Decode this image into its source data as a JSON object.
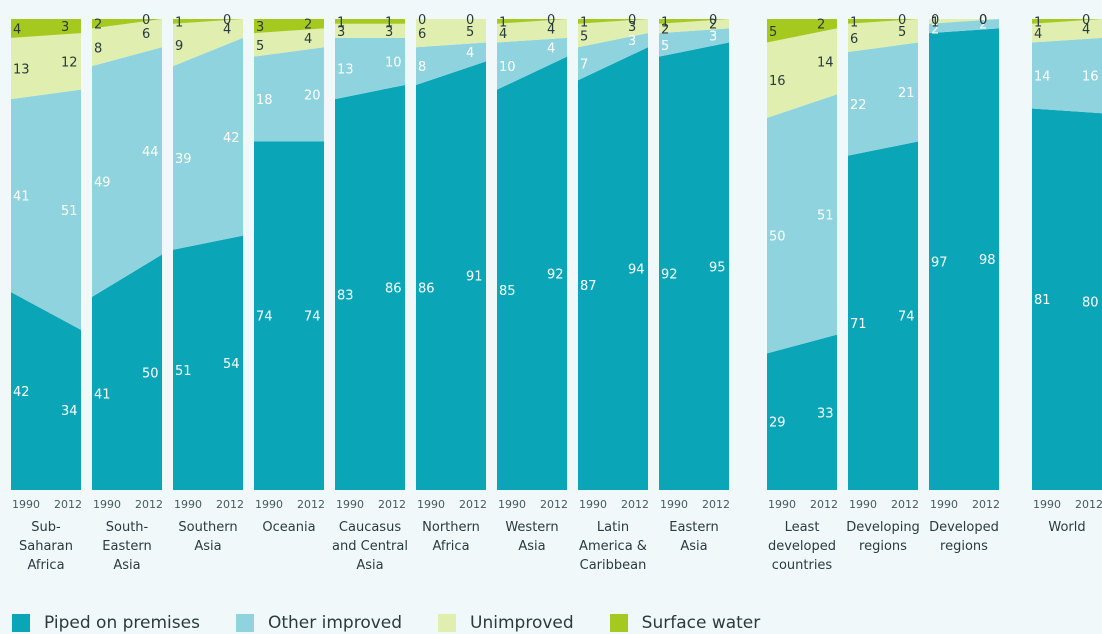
{
  "chart_data": {
    "type": "area",
    "ylim": [
      0,
      100
    ],
    "series": [
      {
        "name": "Piped on premises",
        "color": "#0aa6b8"
      },
      {
        "name": "Other improved",
        "color": "#8fd3de"
      },
      {
        "name": "Unimproved",
        "color": "#e0eeb0"
      },
      {
        "name": "Surface water",
        "color": "#a6c920"
      }
    ],
    "label_colors": {
      "piped": "#ffffff",
      "other": "#ffffff",
      "unimproved": "#2a3b3f",
      "surface": "#2a3b3f"
    },
    "regions": [
      {
        "name": "Sub-Saharan Africa",
        "label_lines": [
          "Sub-",
          "Saharan",
          "Africa"
        ],
        "years": [
          "1990",
          "2012"
        ],
        "values": [
          [
            42,
            41,
            13,
            4
          ],
          [
            34,
            51,
            12,
            3
          ]
        ]
      },
      {
        "name": "South-Eastern Asia",
        "label_lines": [
          "South-",
          "Eastern",
          "Asia"
        ],
        "years": [
          "1990",
          "2012"
        ],
        "values": [
          [
            41,
            49,
            8,
            2
          ],
          [
            50,
            44,
            6,
            0
          ]
        ]
      },
      {
        "name": "Southern Asia",
        "label_lines": [
          "Southern",
          "Asia"
        ],
        "years": [
          "1990",
          "2012"
        ],
        "values": [
          [
            51,
            39,
            9,
            1
          ],
          [
            54,
            42,
            4,
            0
          ]
        ]
      },
      {
        "name": "Oceania",
        "label_lines": [
          "Oceania"
        ],
        "years": [
          "1990",
          "2012"
        ],
        "values": [
          [
            74,
            18,
            5,
            3
          ],
          [
            74,
            20,
            4,
            2
          ]
        ]
      },
      {
        "name": "Caucasus and Central Asia",
        "label_lines": [
          "Caucasus",
          "and Central",
          "Asia"
        ],
        "years": [
          "1990",
          "2012"
        ],
        "values": [
          [
            83,
            13,
            3,
            1
          ],
          [
            86,
            10,
            3,
            1
          ]
        ]
      },
      {
        "name": "Northern Africa",
        "label_lines": [
          "Northern",
          "Africa"
        ],
        "years": [
          "1990",
          "2012"
        ],
        "values": [
          [
            86,
            8,
            6,
            0
          ],
          [
            91,
            4,
            5,
            0
          ]
        ]
      },
      {
        "name": "Western Asia",
        "label_lines": [
          "Western",
          "Asia"
        ],
        "years": [
          "1990",
          "2012"
        ],
        "values": [
          [
            85,
            10,
            4,
            1
          ],
          [
            92,
            4,
            4,
            0
          ]
        ]
      },
      {
        "name": "Latin America & Caribbean",
        "label_lines": [
          "Latin",
          "America &",
          "Caribbean"
        ],
        "years": [
          "1990",
          "2012"
        ],
        "values": [
          [
            87,
            7,
            5,
            1
          ],
          [
            94,
            3,
            3,
            0
          ]
        ]
      },
      {
        "name": "Eastern Asia",
        "label_lines": [
          "Eastern",
          "Asia"
        ],
        "years": [
          "1990",
          "2012"
        ],
        "values": [
          [
            92,
            5,
            2,
            1
          ],
          [
            95,
            3,
            2,
            0
          ]
        ]
      },
      {
        "name": "Least developed countries",
        "label_lines": [
          "Least",
          "developed",
          "countries"
        ],
        "years": [
          "1990",
          "2012"
        ],
        "values": [
          [
            29,
            50,
            16,
            5
          ],
          [
            33,
            51,
            14,
            2
          ]
        ]
      },
      {
        "name": "Developing regions",
        "label_lines": [
          "Developing",
          "regions"
        ],
        "years": [
          "1990",
          "2012"
        ],
        "values": [
          [
            71,
            22,
            6,
            1
          ],
          [
            74,
            21,
            5,
            0
          ]
        ]
      },
      {
        "name": "Developed regions",
        "label_lines": [
          "Developed",
          "regions"
        ],
        "years": [
          "1990",
          "2012"
        ],
        "values": [
          [
            97,
            2,
            1,
            0
          ],
          [
            98,
            2,
            0,
            0
          ]
        ]
      },
      {
        "name": "World",
        "label_lines": [
          "World"
        ],
        "years": [
          "1990",
          "2012"
        ],
        "values": [
          [
            81,
            14,
            4,
            1
          ],
          [
            80,
            16,
            4,
            0
          ]
        ]
      }
    ]
  }
}
